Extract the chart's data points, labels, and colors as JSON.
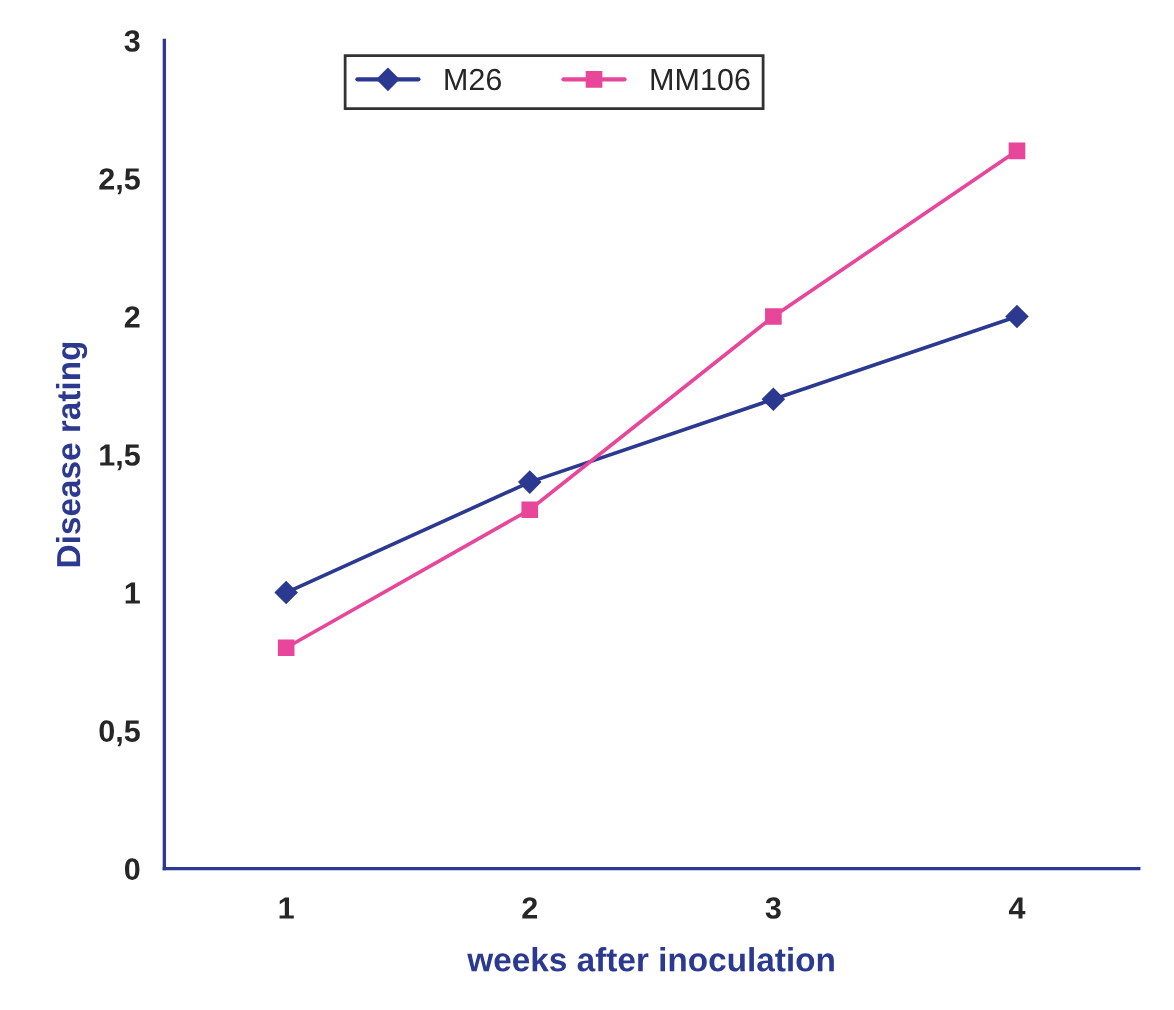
{
  "chart_data": {
    "type": "line",
    "xlabel": "weeks after inoculation",
    "ylabel": "Disease rating",
    "categories": [
      "1",
      "2",
      "3",
      "4"
    ],
    "series": [
      {
        "name": "M26",
        "color": "#2b3990",
        "marker": "diamond",
        "values": [
          1.0,
          1.4,
          1.7,
          2.0
        ]
      },
      {
        "name": "MM106",
        "color": "#e8469a",
        "marker": "square",
        "values": [
          0.8,
          1.3,
          2.0,
          2.6
        ]
      }
    ],
    "ylim": [
      0,
      3
    ],
    "yticks": [
      0,
      {
        "value": 0.5,
        "label": "0,5"
      },
      1,
      {
        "value": 1.5,
        "label": "1,5"
      },
      2,
      {
        "value": 2.5,
        "label": "2,5"
      },
      3
    ],
    "grid": false,
    "legend": "top",
    "line_style": "solid"
  }
}
